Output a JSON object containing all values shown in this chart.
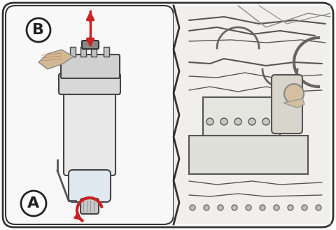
{
  "bg_color": "#ffffff",
  "outer_border_color": "#333333",
  "left_panel_bg": "#f5f5f5",
  "right_panel_bg": "#f0f0f0",
  "red_arrow_color": "#cc2222",
  "label_A": "A",
  "label_B": "B",
  "label_circle_color": "#ffffff",
  "label_border_color": "#222222",
  "line_color": "#444444",
  "figsize": [
    4.8,
    3.29
  ],
  "dpi": 100
}
